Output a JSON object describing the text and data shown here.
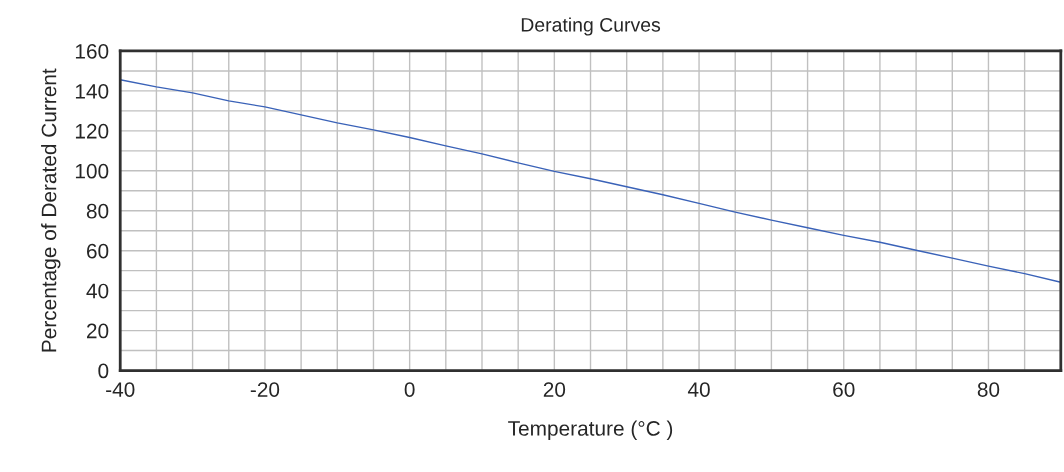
{
  "chart_data": {
    "type": "line",
    "title": "Derating Curves",
    "xlabel": "Temperature (°C )",
    "ylabel": "Percentage of Derated Current",
    "x": [
      -40,
      -35,
      -30,
      -25,
      -20,
      -15,
      -10,
      -5,
      0,
      5,
      10,
      15,
      20,
      25,
      30,
      35,
      40,
      45,
      50,
      55,
      60,
      65,
      70,
      75,
      80,
      85,
      90
    ],
    "series": [
      {
        "color": "#3a62b8",
        "values": [
          145.6,
          142,
          139,
          135,
          132,
          128,
          124,
          120.5,
          116.7,
          112.5,
          108.5,
          104,
          99.7,
          96,
          92,
          88,
          83.7,
          79.3,
          75.3,
          71.5,
          67.7,
          64.2,
          60.2,
          56.3,
          52.3,
          48.5,
          44.2
        ]
      }
    ],
    "xlim": [
      -40,
      90
    ],
    "ylim": [
      0,
      160
    ],
    "xticks": [
      -40,
      {
        "value": -35,
        "label": null
      },
      {
        "value": -30,
        "label": null
      },
      {
        "value": -25,
        "label": null
      },
      -20,
      {
        "value": -15,
        "label": null
      },
      {
        "value": -10,
        "label": null
      },
      {
        "value": -5,
        "label": null
      },
      0,
      {
        "value": 5,
        "label": null
      },
      {
        "value": 10,
        "label": null
      },
      {
        "value": 15,
        "label": null
      },
      20,
      {
        "value": 25,
        "label": null
      },
      {
        "value": 30,
        "label": null
      },
      {
        "value": 35,
        "label": null
      },
      40,
      {
        "value": 45,
        "label": null
      },
      {
        "value": 50,
        "label": null
      },
      {
        "value": 55,
        "label": null
      },
      60,
      {
        "value": 65,
        "label": null
      },
      {
        "value": 70,
        "label": null
      },
      {
        "value": 75,
        "label": null
      },
      80,
      {
        "value": 85,
        "label": null
      }
    ],
    "yticks": [
      0,
      {
        "value": 10,
        "label": null
      },
      20,
      {
        "value": 30,
        "label": null
      },
      40,
      {
        "value": 50,
        "label": null
      },
      60,
      {
        "value": 70,
        "label": null
      },
      80,
      {
        "value": 90,
        "label": null
      },
      100,
      {
        "value": 110,
        "label": null
      },
      120,
      {
        "value": 130,
        "label": null
      },
      140,
      {
        "value": 150,
        "label": null
      },
      160
    ],
    "grid": true,
    "marker": "none",
    "line_style": "solid"
  }
}
